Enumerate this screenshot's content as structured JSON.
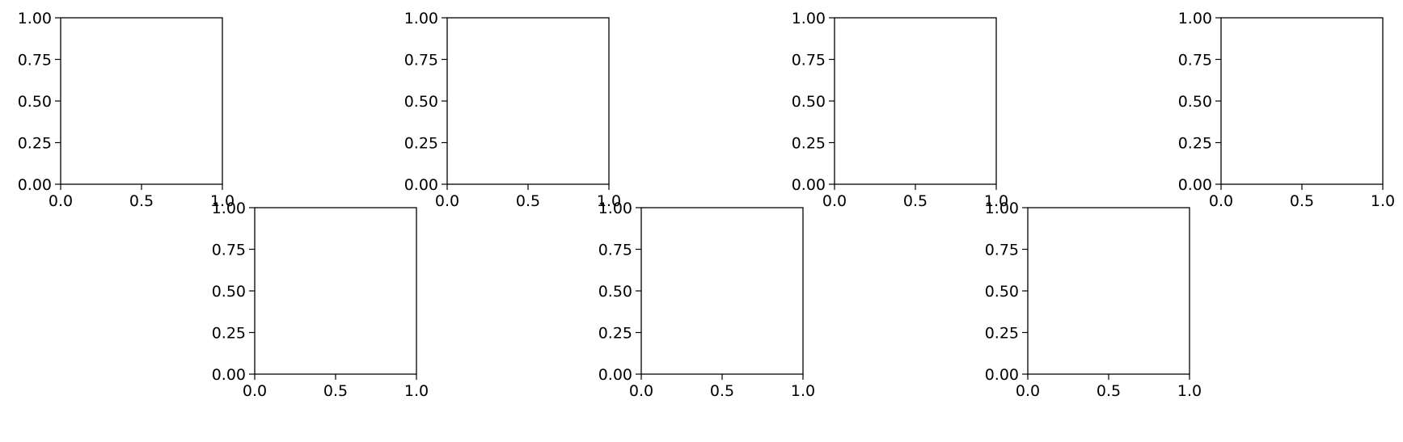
{
  "chart_data": [
    {
      "type": "scatter",
      "title": "",
      "xlabel": "",
      "ylabel": "",
      "xlim": [
        0.0,
        1.0
      ],
      "ylim": [
        0.0,
        1.0
      ],
      "x_ticks": [
        "0.0",
        "0.5",
        "1.0"
      ],
      "y_ticks": [
        "0.00",
        "0.25",
        "0.50",
        "0.75",
        "1.00"
      ],
      "grid": false,
      "series": []
    },
    {
      "type": "scatter",
      "title": "",
      "xlabel": "",
      "ylabel": "",
      "xlim": [
        0.0,
        1.0
      ],
      "ylim": [
        0.0,
        1.0
      ],
      "x_ticks": [
        "0.0",
        "0.5",
        "1.0"
      ],
      "y_ticks": [
        "0.00",
        "0.25",
        "0.50",
        "0.75",
        "1.00"
      ],
      "grid": false,
      "series": []
    },
    {
      "type": "scatter",
      "title": "",
      "xlabel": "",
      "ylabel": "",
      "xlim": [
        0.0,
        1.0
      ],
      "ylim": [
        0.0,
        1.0
      ],
      "x_ticks": [
        "0.0",
        "0.5",
        "1.0"
      ],
      "y_ticks": [
        "0.00",
        "0.25",
        "0.50",
        "0.75",
        "1.00"
      ],
      "grid": false,
      "series": []
    },
    {
      "type": "scatter",
      "title": "",
      "xlabel": "",
      "ylabel": "",
      "xlim": [
        0.0,
        1.0
      ],
      "ylim": [
        0.0,
        1.0
      ],
      "x_ticks": [
        "0.0",
        "0.5",
        "1.0"
      ],
      "y_ticks": [
        "0.00",
        "0.25",
        "0.50",
        "0.75",
        "1.00"
      ],
      "grid": false,
      "series": []
    },
    {
      "type": "scatter",
      "title": "",
      "xlabel": "",
      "ylabel": "",
      "xlim": [
        0.0,
        1.0
      ],
      "ylim": [
        0.0,
        1.0
      ],
      "x_ticks": [
        "0.0",
        "0.5",
        "1.0"
      ],
      "y_ticks": [
        "0.00",
        "0.25",
        "0.50",
        "0.75",
        "1.00"
      ],
      "grid": false,
      "series": []
    },
    {
      "type": "scatter",
      "title": "",
      "xlabel": "",
      "ylabel": "",
      "xlim": [
        0.0,
        1.0
      ],
      "ylim": [
        0.0,
        1.0
      ],
      "x_ticks": [
        "0.0",
        "0.5",
        "1.0"
      ],
      "y_ticks": [
        "0.00",
        "0.25",
        "0.50",
        "0.75",
        "1.00"
      ],
      "grid": false,
      "series": []
    },
    {
      "type": "scatter",
      "title": "",
      "xlabel": "",
      "ylabel": "",
      "xlim": [
        0.0,
        1.0
      ],
      "ylim": [
        0.0,
        1.0
      ],
      "x_ticks": [
        "0.0",
        "0.5",
        "1.0"
      ],
      "y_ticks": [
        "0.00",
        "0.25",
        "0.50",
        "0.75",
        "1.00"
      ],
      "grid": false,
      "series": []
    }
  ]
}
